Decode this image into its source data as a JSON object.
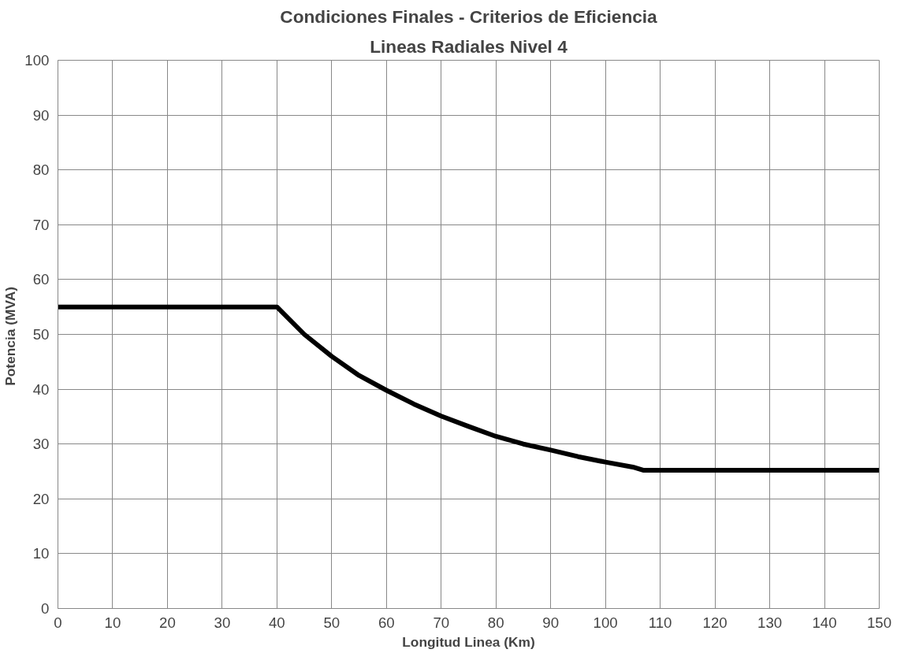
{
  "chart_data": {
    "type": "line",
    "title": "Condiciones Finales - Criterios de Eficiencia",
    "subtitle": "Lineas Radiales Nivel 4",
    "xlabel": "Longitud Linea (Km)",
    "ylabel": "Potencia  (MVA)",
    "x": [
      0,
      40,
      45,
      50,
      55,
      60,
      65,
      70,
      75,
      80,
      85,
      90,
      95,
      100,
      105,
      107,
      150
    ],
    "series": [
      {
        "color": "#000000",
        "values": [
          55,
          55,
          50,
          46,
          42.5,
          39.8,
          37.3,
          35.1,
          33.2,
          31.4,
          30,
          28.9,
          27.7,
          26.7,
          25.8,
          25.2,
          25.2
        ]
      }
    ],
    "xlim": [
      0,
      150
    ],
    "ylim": [
      0,
      100
    ],
    "xticks": [
      0,
      10,
      20,
      30,
      40,
      50,
      60,
      70,
      80,
      90,
      100,
      110,
      120,
      130,
      140,
      150
    ],
    "yticks": [
      0,
      10,
      20,
      30,
      40,
      50,
      60,
      70,
      80,
      90,
      100
    ],
    "grid": true,
    "marker": "none",
    "line_style": "solid"
  }
}
